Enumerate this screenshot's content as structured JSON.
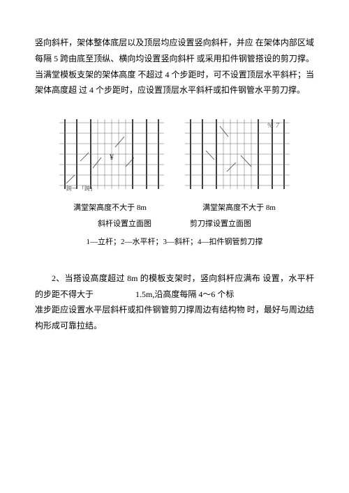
{
  "main_para": "竖向斜杆，架体整体底层以及顶层均应设置竖向斜杆，并应 在架体内部区域每隔 5 跨由底至顶纵、横向均设置竖向斜杆 或采用扣件钢管搭设的剪刀撑。当满堂模板支架的架体高度 不超过 4 个步距时，可不设置顶层水平斜杆；当架体高度超 过 4 个步距时，应设置顶层水平斜杆或扣件钢管水平剪刀撑。",
  "caption_left": "满堂架高度不大于 8m",
  "caption_right": "满堂架高度不大于 8m",
  "sub_left": "斜杆设置立面图",
  "sub_right": "剪刀撑设置立面图",
  "legend_text": "1—立杆；2—水平杆；3—斜杆；4—扣件钢管剪刀撑",
  "para2_line1": "2、当搭设高度超过 8m 的模板支架时，竖向斜杆应满布 设置，水平杆的步距不得大于　　　　　1.5m,沿高度每隔 4～6 个标",
  "para2_line2": "准步距应设置水平层斜杆或扣件钢管剪刀撑周边有结构物 时，最好与周边结构形成可靠拉结。",
  "diagram": {
    "v_thick": [
      8,
      25,
      45,
      105,
      125,
      142
    ],
    "v_thin": [
      55,
      65,
      75,
      85,
      95
    ],
    "h_thin": [
      5,
      20,
      35,
      50,
      65,
      80,
      95
    ],
    "left_diags": [
      [
        30,
        60,
        42,
        48
      ],
      [
        60,
        55,
        48,
        70
      ],
      [
        80,
        40,
        93,
        25
      ],
      [
        95,
        68,
        107,
        55
      ],
      [
        10,
        92,
        22,
        80
      ]
    ],
    "right_diags": [
      [
        50,
        10,
        62,
        25
      ],
      [
        80,
        52,
        95,
        68
      ],
      [
        60,
        75,
        73,
        62
      ],
      [
        30,
        45,
        42,
        58
      ]
    ],
    "left_text": [
      "跨一 「跨」",
      [
        10,
        102
      ]
    ],
    "left_sym": [
      "¥",
      [
        72,
        58
      ]
    ],
    "right_sym": [
      "%",
      [
        118,
        12
      ]
    ],
    "right_num": [
      "7",
      [
        130,
        12
      ]
    ]
  }
}
